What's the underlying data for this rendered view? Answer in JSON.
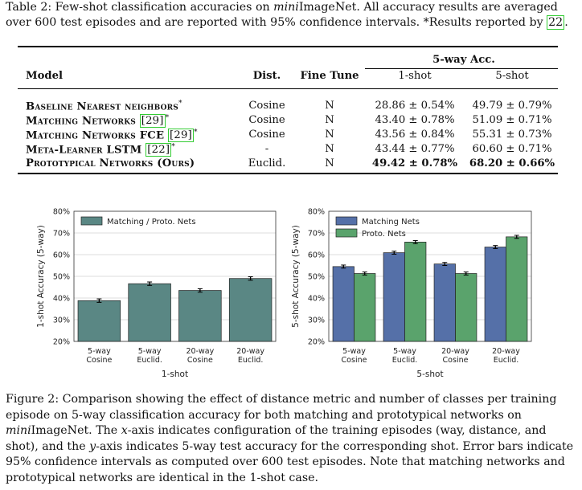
{
  "table": {
    "caption_before_italic": "Table 2: Few-shot classification accuracies on ",
    "caption_italic": "mini",
    "caption_after_italic": "ImageNet. All accuracy results are averaged over 600 test episodes and are reported with 95% confidence intervals. *Results reported by ",
    "caption_cite": "22",
    "caption_end": ".",
    "group_header": "5-way Acc.",
    "headers": {
      "model": "Model",
      "dist": "Dist.",
      "fine_tune": "Fine Tune",
      "one_shot": "1-shot",
      "five_shot": "5-shot"
    },
    "rows": [
      {
        "model": "Baseline Nearest neighbors",
        "cite": "",
        "star": "*",
        "dist": "Cosine",
        "ft": "N",
        "one": "28.86 ± 0.54%",
        "five": "49.79 ± 0.79%",
        "bold": false
      },
      {
        "model": "Matching Networks",
        "cite": "29",
        "star": "*",
        "dist": "Cosine",
        "ft": "N",
        "one": "43.40 ± 0.78%",
        "five": "51.09 ± 0.71%",
        "bold": false
      },
      {
        "model": "Matching Networks FCE",
        "cite": "29",
        "star": "*",
        "dist": "Cosine",
        "ft": "N",
        "one": "43.56 ± 0.84%",
        "five": "55.31 ± 0.73%",
        "bold": false
      },
      {
        "model": "Meta-Learner LSTM",
        "cite": "22",
        "star": "*",
        "dist": "-",
        "ft": "N",
        "one": "43.44 ± 0.77%",
        "five": "60.60 ± 0.71%",
        "bold": false
      },
      {
        "model": "Prototypical Networks (Ours)",
        "cite": "",
        "star": "",
        "dist": "Euclid.",
        "ft": "N",
        "one": "49.42 ± 0.78%",
        "five": "68.20 ± 0.66%",
        "bold": true
      }
    ]
  },
  "figure": {
    "caption_p1": "Figure 2: Comparison showing the effect of distance metric and number of classes per training episode on 5-way classification accuracy for both matching and prototypical networks on ",
    "caption_italic": "mini",
    "caption_p2": "ImageNet. The ",
    "x_var": "x",
    "caption_p3": "-axis indicates configuration of the training episodes (way, distance, and shot), and the ",
    "y_var": "y",
    "caption_p4": "-axis indicates 5-way test accuracy for the corresponding shot. Error bars indicate 95% confidence intervals as computed over 600 test episodes. Note that matching networks and prototypical networks are identical in the 1-shot case."
  },
  "colors": {
    "teal": "#5a8784",
    "blue": "#5570a8",
    "green": "#5aa36c"
  },
  "chart_data": [
    {
      "type": "bar",
      "categories": [
        "5-way\nCosine",
        "5-way\nEuclid.",
        "20-way\nCosine",
        "20-way\nEuclid."
      ],
      "series": [
        {
          "name": "Matching / Proto. Nets",
          "values": [
            38.8,
            46.6,
            43.5,
            49.0
          ],
          "errors": [
            0.8,
            0.8,
            0.8,
            0.8
          ]
        }
      ],
      "xlabel": "1-shot",
      "ylabel": "1-shot Accuracy (5-way)",
      "ylim": [
        20,
        80
      ],
      "yticks": [
        "20%",
        "30%",
        "40%",
        "50%",
        "60%",
        "70%",
        "80%"
      ],
      "legend": "top-left"
    },
    {
      "type": "bar",
      "categories": [
        "5-way\nCosine",
        "5-way\nEuclid.",
        "20-way\nCosine",
        "20-way\nEuclid."
      ],
      "series": [
        {
          "name": "Matching Nets",
          "values": [
            54.5,
            60.9,
            55.7,
            63.5
          ],
          "errors": [
            0.7,
            0.7,
            0.7,
            0.7
          ]
        },
        {
          "name": "Proto. Nets",
          "values": [
            51.3,
            65.8,
            51.3,
            68.2
          ],
          "errors": [
            0.7,
            0.7,
            0.7,
            0.7
          ]
        }
      ],
      "xlabel": "5-shot",
      "ylabel": "5-shot Accuracy (5-way)",
      "ylim": [
        20,
        80
      ],
      "yticks": [
        "20%",
        "30%",
        "40%",
        "50%",
        "60%",
        "70%",
        "80%"
      ],
      "legend": "top-left"
    }
  ]
}
